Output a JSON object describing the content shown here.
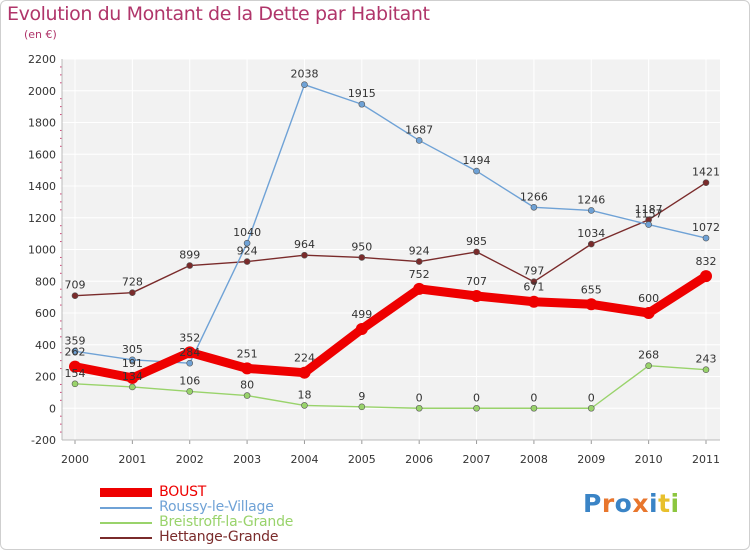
{
  "chart_data": {
    "type": "line",
    "title": "Evolution du Montant de la Dette par Habitant",
    "subtitle": "(en €)",
    "categories": [
      "2000",
      "2001",
      "2002",
      "2003",
      "2004",
      "2005",
      "2006",
      "2007",
      "2008",
      "2009",
      "2010",
      "2011"
    ],
    "ylim": [
      -200,
      2200
    ],
    "yticks": [
      -200,
      0,
      200,
      400,
      600,
      800,
      1000,
      1200,
      1400,
      1600,
      1800,
      2000,
      2200
    ],
    "grid": true,
    "legend_position": "bottom-left",
    "series": [
      {
        "name": "BOUST",
        "color": "#ee0000",
        "values": [
          262,
          191,
          352,
          251,
          224,
          499,
          752,
          707,
          671,
          655,
          600,
          832
        ]
      },
      {
        "name": "Roussy-le-Village",
        "color": "#6fa2d6",
        "values": [
          359,
          305,
          284,
          1040,
          2038,
          1915,
          1687,
          1494,
          1266,
          1246,
          1157,
          1072
        ]
      },
      {
        "name": "Breistroff-la-Grande",
        "color": "#99d36b",
        "values": [
          154,
          134,
          106,
          80,
          18,
          9,
          0,
          0,
          0,
          0,
          268,
          243
        ]
      },
      {
        "name": "Hettange-Grande",
        "color": "#7a2b2b",
        "values": [
          709,
          728,
          899,
          924,
          964,
          950,
          924,
          985,
          797,
          1034,
          1187,
          1421
        ]
      }
    ]
  },
  "logo": {
    "text": "Proxiti",
    "letters": [
      "P",
      "r",
      "o",
      "x",
      "i",
      "t",
      "i"
    ],
    "colors": [
      "#3a84c6",
      "#e8762d",
      "#3a84c6",
      "#e8762d",
      "#3a84c6",
      "#e8c02d",
      "#8cc63f"
    ]
  }
}
